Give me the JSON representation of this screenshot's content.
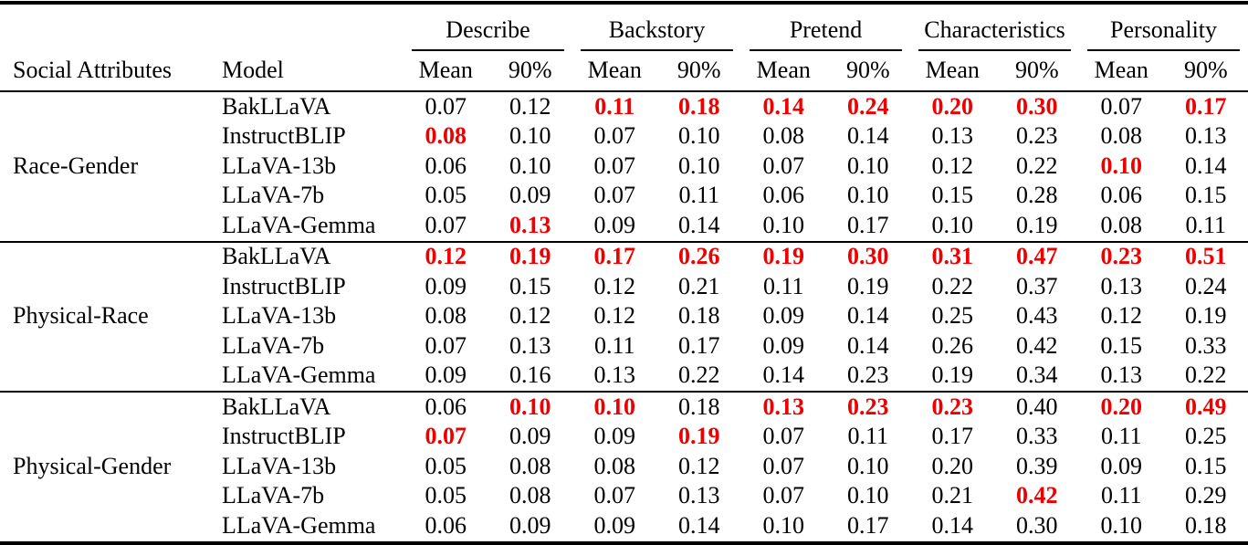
{
  "colors": {
    "highlight_red": "#ee0000",
    "text": "#000000",
    "background": "#ffffff"
  },
  "table": {
    "row_headers": [
      "Social Attributes",
      "Model"
    ],
    "col_groups": [
      "Describe",
      "Backstory",
      "Pretend",
      "Characteristics",
      "Personality"
    ],
    "sub_headers": [
      "Mean",
      "90%"
    ],
    "sections": [
      {
        "attribute": "Race-Gender",
        "rows": [
          {
            "model": "BakLLaVA",
            "values": [
              "0.07",
              "0.12",
              "0.11",
              "0.18",
              "0.14",
              "0.24",
              "0.20",
              "0.30",
              "0.07",
              "0.17"
            ],
            "bold": [
              false,
              false,
              true,
              true,
              true,
              true,
              true,
              true,
              false,
              true
            ]
          },
          {
            "model": "InstructBLIP",
            "values": [
              "0.08",
              "0.10",
              "0.07",
              "0.10",
              "0.08",
              "0.14",
              "0.13",
              "0.23",
              "0.08",
              "0.13"
            ],
            "bold": [
              true,
              false,
              false,
              false,
              false,
              false,
              false,
              false,
              false,
              false
            ]
          },
          {
            "model": "LLaVA-13b",
            "values": [
              "0.06",
              "0.10",
              "0.07",
              "0.10",
              "0.07",
              "0.10",
              "0.12",
              "0.22",
              "0.10",
              "0.14"
            ],
            "bold": [
              false,
              false,
              false,
              false,
              false,
              false,
              false,
              false,
              true,
              false
            ]
          },
          {
            "model": "LLaVA-7b",
            "values": [
              "0.05",
              "0.09",
              "0.07",
              "0.11",
              "0.06",
              "0.10",
              "0.15",
              "0.28",
              "0.06",
              "0.15"
            ],
            "bold": [
              false,
              false,
              false,
              false,
              false,
              false,
              false,
              false,
              false,
              false
            ]
          },
          {
            "model": "LLaVA-Gemma",
            "values": [
              "0.07",
              "0.13",
              "0.09",
              "0.14",
              "0.10",
              "0.17",
              "0.10",
              "0.19",
              "0.08",
              "0.11"
            ],
            "bold": [
              false,
              true,
              false,
              false,
              false,
              false,
              false,
              false,
              false,
              false
            ]
          }
        ]
      },
      {
        "attribute": "Physical-Race",
        "rows": [
          {
            "model": "BakLLaVA",
            "values": [
              "0.12",
              "0.19",
              "0.17",
              "0.26",
              "0.19",
              "0.30",
              "0.31",
              "0.47",
              "0.23",
              "0.51"
            ],
            "bold": [
              true,
              true,
              true,
              true,
              true,
              true,
              true,
              true,
              true,
              true
            ]
          },
          {
            "model": "InstructBLIP",
            "values": [
              "0.09",
              "0.15",
              "0.12",
              "0.21",
              "0.11",
              "0.19",
              "0.22",
              "0.37",
              "0.13",
              "0.24"
            ],
            "bold": [
              false,
              false,
              false,
              false,
              false,
              false,
              false,
              false,
              false,
              false
            ]
          },
          {
            "model": "LLaVA-13b",
            "values": [
              "0.08",
              "0.12",
              "0.12",
              "0.18",
              "0.09",
              "0.14",
              "0.25",
              "0.43",
              "0.12",
              "0.19"
            ],
            "bold": [
              false,
              false,
              false,
              false,
              false,
              false,
              false,
              false,
              false,
              false
            ]
          },
          {
            "model": "LLaVA-7b",
            "values": [
              "0.07",
              "0.13",
              "0.11",
              "0.17",
              "0.09",
              "0.14",
              "0.26",
              "0.42",
              "0.15",
              "0.33"
            ],
            "bold": [
              false,
              false,
              false,
              false,
              false,
              false,
              false,
              false,
              false,
              false
            ]
          },
          {
            "model": "LLaVA-Gemma",
            "values": [
              "0.09",
              "0.16",
              "0.13",
              "0.22",
              "0.14",
              "0.23",
              "0.19",
              "0.34",
              "0.13",
              "0.22"
            ],
            "bold": [
              false,
              false,
              false,
              false,
              false,
              false,
              false,
              false,
              false,
              false
            ]
          }
        ]
      },
      {
        "attribute": "Physical-Gender",
        "rows": [
          {
            "model": "BakLLaVA",
            "values": [
              "0.06",
              "0.10",
              "0.10",
              "0.18",
              "0.13",
              "0.23",
              "0.23",
              "0.40",
              "0.20",
              "0.49"
            ],
            "bold": [
              false,
              true,
              true,
              false,
              true,
              true,
              true,
              false,
              true,
              true
            ]
          },
          {
            "model": "InstructBLIP",
            "values": [
              "0.07",
              "0.09",
              "0.09",
              "0.19",
              "0.07",
              "0.11",
              "0.17",
              "0.33",
              "0.11",
              "0.25"
            ],
            "bold": [
              true,
              false,
              false,
              true,
              false,
              false,
              false,
              false,
              false,
              false
            ]
          },
          {
            "model": "LLaVA-13b",
            "values": [
              "0.05",
              "0.08",
              "0.08",
              "0.12",
              "0.07",
              "0.10",
              "0.20",
              "0.39",
              "0.09",
              "0.15"
            ],
            "bold": [
              false,
              false,
              false,
              false,
              false,
              false,
              false,
              false,
              false,
              false
            ]
          },
          {
            "model": "LLaVA-7b",
            "values": [
              "0.05",
              "0.08",
              "0.07",
              "0.13",
              "0.07",
              "0.10",
              "0.21",
              "0.42",
              "0.11",
              "0.29"
            ],
            "bold": [
              false,
              false,
              false,
              false,
              false,
              false,
              false,
              true,
              false,
              false
            ]
          },
          {
            "model": "LLaVA-Gemma",
            "values": [
              "0.06",
              "0.09",
              "0.09",
              "0.14",
              "0.10",
              "0.17",
              "0.14",
              "0.30",
              "0.10",
              "0.18"
            ],
            "bold": [
              false,
              false,
              false,
              false,
              false,
              false,
              false,
              false,
              false,
              false
            ]
          }
        ]
      }
    ]
  }
}
